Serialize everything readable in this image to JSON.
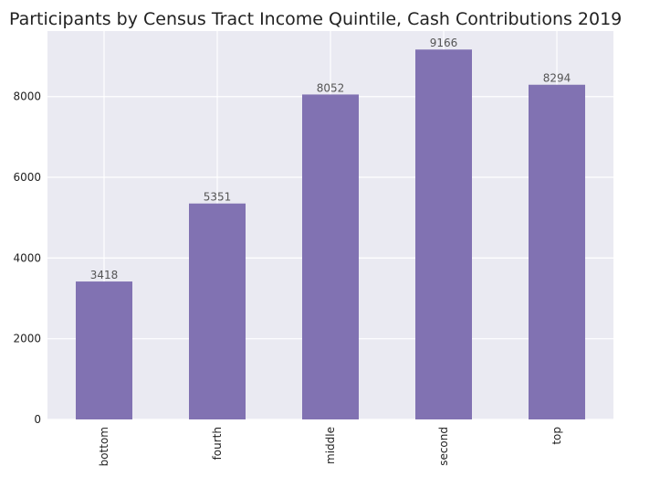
{
  "chart_data": {
    "type": "bar",
    "title": "Participants by Census Tract Income Quintile, Cash Contributions 2019",
    "xlabel": "",
    "ylabel": "",
    "categories": [
      "bottom",
      "fourth",
      "middle",
      "second",
      "top"
    ],
    "values": [
      3418,
      5351,
      8052,
      9166,
      8294
    ],
    "ylim": [
      0,
      9624
    ],
    "yticks": [
      0,
      2000,
      4000,
      6000,
      8000
    ],
    "grid": true,
    "bar_color": "#8172b2",
    "background_color": "#eaeaf2",
    "grid_color": "#ffffff"
  }
}
